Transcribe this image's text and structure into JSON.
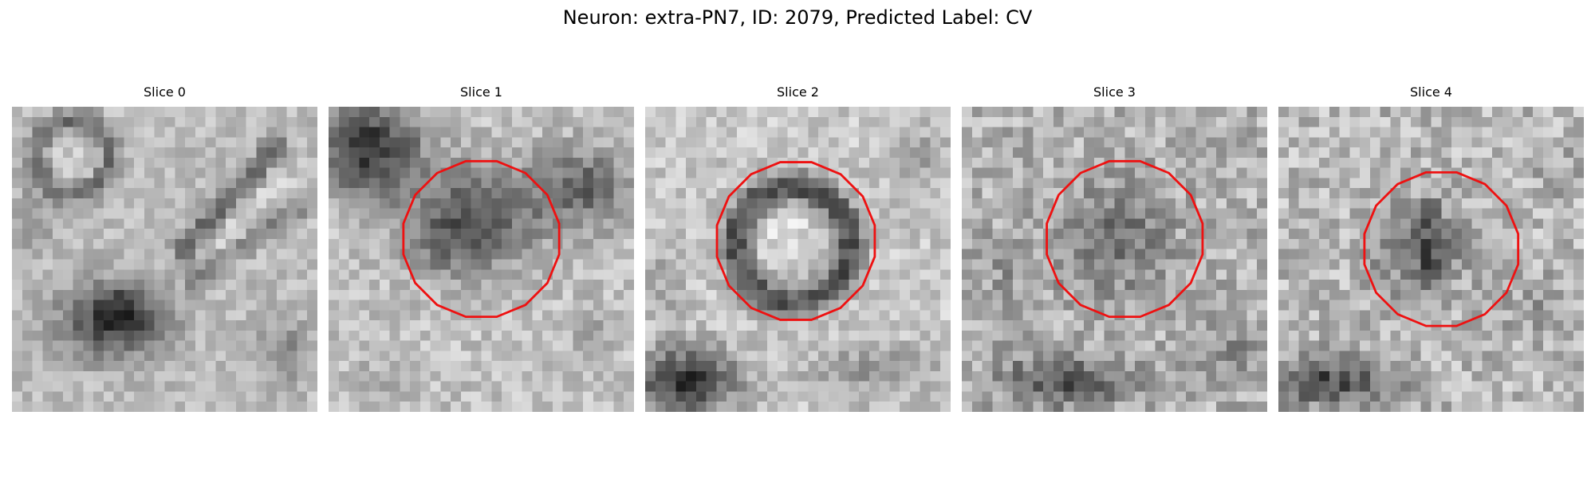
{
  "figure": {
    "title": "Neuron: extra-PN7, ID: 2079, Predicted Label: CV"
  },
  "colors": {
    "roi_outline": "#ee1111",
    "background": "#ffffff"
  },
  "image": {
    "colormap": "gray",
    "grid_size": 30
  },
  "slices": [
    {
      "title": "Slice 0",
      "roi": null
    },
    {
      "title": "Slice 1",
      "roi": {
        "center": [
          15.0,
          13.0
        ],
        "radius": 7.8
      }
    },
    {
      "title": "Slice 2",
      "roi": {
        "center": [
          14.8,
          13.2
        ],
        "radius": 7.9
      }
    },
    {
      "title": "Slice 3",
      "roi": {
        "center": [
          16.0,
          13.0
        ],
        "radius": 7.8
      }
    },
    {
      "title": "Slice 4",
      "roi": {
        "center": [
          16.0,
          14.0
        ],
        "radius": 7.7
      }
    }
  ]
}
